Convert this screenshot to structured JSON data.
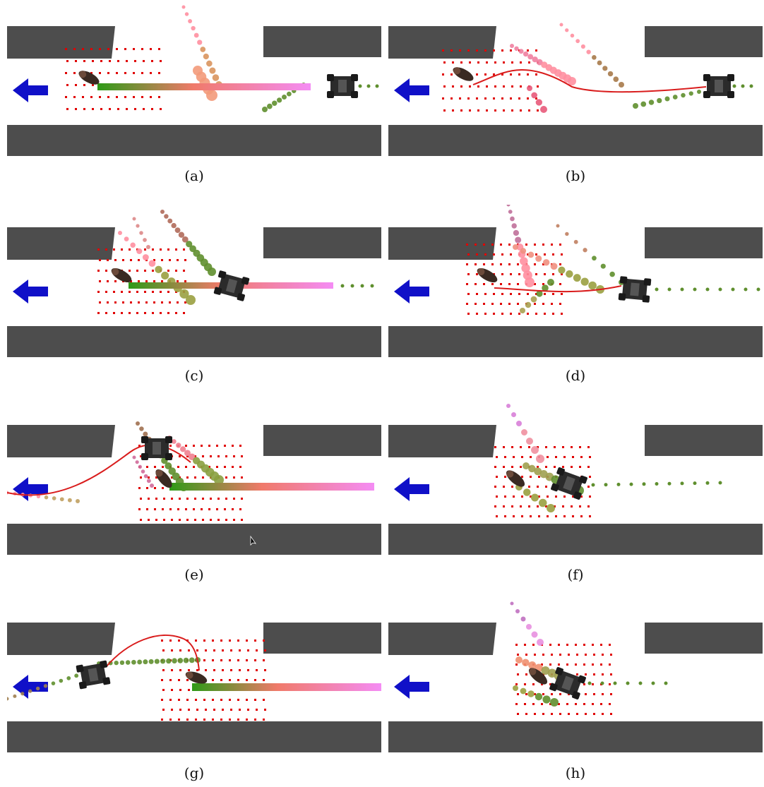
{
  "figure": {
    "panels": [
      {
        "label": "(a)"
      },
      {
        "label": "(b)"
      },
      {
        "label": "(c)"
      },
      {
        "label": "(d)"
      },
      {
        "label": "(e)"
      },
      {
        "label": "(f)"
      },
      {
        "label": "(g)"
      },
      {
        "label": "(h)"
      }
    ],
    "colors": {
      "wall": "#4d4d4d",
      "arrow": "#1010c8",
      "grid_dot": "#e00000",
      "path_green": "#2e9a17",
      "path_pink": "#f48cf4",
      "robot": "#2b2b2b",
      "predicted_green": "#5f8f2e",
      "predicted_pink": "#ff8fa0",
      "trajectory_line": "#d91c1c"
    },
    "icons": {
      "direction": "left-arrow-icon",
      "robot": "robot-icon",
      "human": "human-icon",
      "cursor": "cursor-icon"
    }
  }
}
